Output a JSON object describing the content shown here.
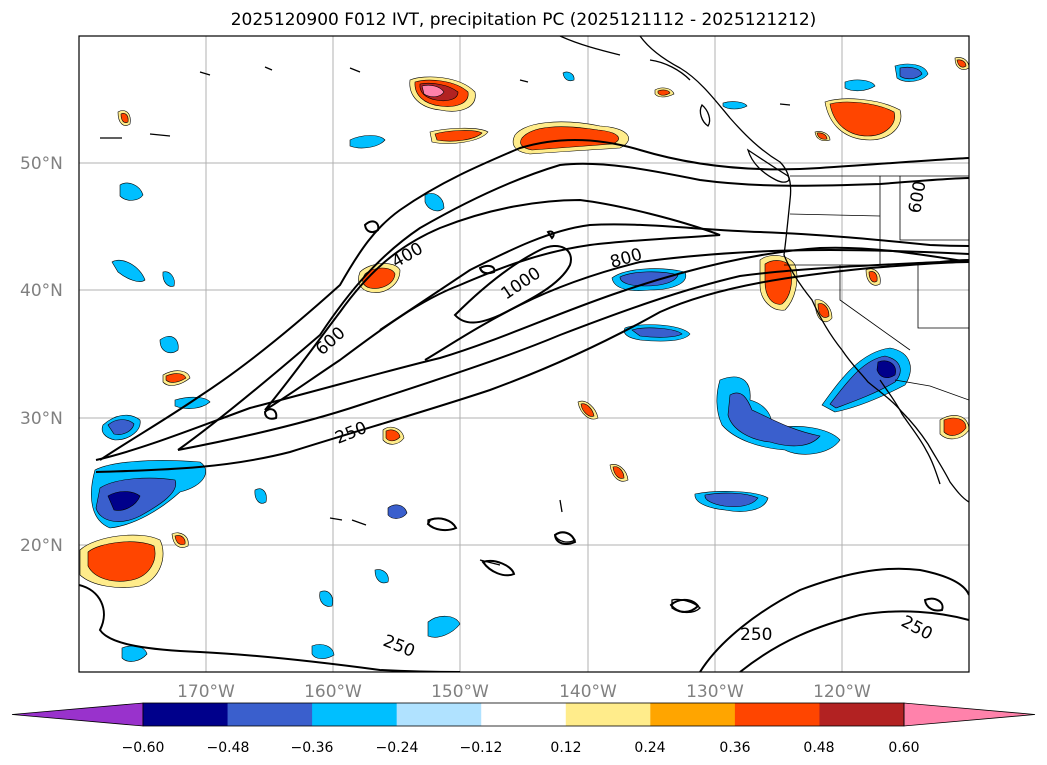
{
  "title": "2025120900 F012 IVT, precipitation PC (2025121112 - 2025121212)",
  "lat_labels": [
    "50°N",
    "40°N",
    "30°N",
    "20°N"
  ],
  "lon_labels": [
    "170°W",
    "160°W",
    "150°W",
    "140°W",
    "130°W",
    "120°W"
  ],
  "ivt_contour_labels": [
    "250",
    "400",
    "600",
    "800",
    "1000",
    "600",
    "250",
    "250",
    "250"
  ],
  "colorbar": {
    "ticks": [
      "−0.60",
      "−0.48",
      "−0.36",
      "−0.24",
      "−0.12",
      "0.12",
      "0.24",
      "0.36",
      "0.48",
      "0.60"
    ],
    "colors": [
      "#9932cc",
      "#00008b",
      "#3a5fcd",
      "#00bfff",
      "#b0e2ff",
      "#ffffff",
      "#ffec8b",
      "#ffa500",
      "#ff4500",
      "#b22222",
      "#ff82ab"
    ]
  },
  "colors": {
    "grid": "#b0b0b0",
    "coast": "#000000",
    "ivt_contour": "#000000"
  }
}
